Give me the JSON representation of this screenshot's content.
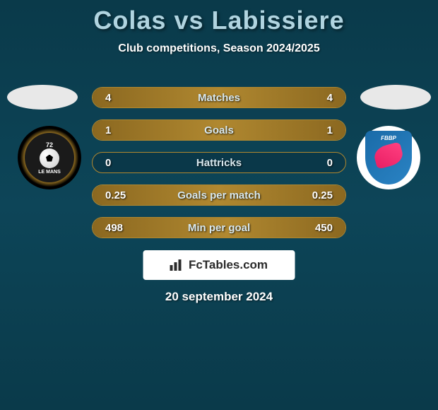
{
  "header": {
    "title": "Colas vs Labissiere",
    "subtitle": "Club competitions, Season 2024/2025"
  },
  "stats": [
    {
      "label": "Matches",
      "left_value": "4",
      "right_value": "4",
      "left_fill_pct": 50,
      "right_fill_pct": 50
    },
    {
      "label": "Goals",
      "left_value": "1",
      "right_value": "1",
      "left_fill_pct": 50,
      "right_fill_pct": 50
    },
    {
      "label": "Hattricks",
      "left_value": "0",
      "right_value": "0",
      "left_fill_pct": 0,
      "right_fill_pct": 0
    },
    {
      "label": "Goals per match",
      "left_value": "0.25",
      "right_value": "0.25",
      "left_fill_pct": 50,
      "right_fill_pct": 50
    },
    {
      "label": "Min per goal",
      "left_value": "498",
      "right_value": "450",
      "left_fill_pct": 53,
      "right_fill_pct": 47
    }
  ],
  "badges": {
    "left": {
      "text": "LE MANS",
      "number": "72"
    },
    "right": {
      "text": "FBBP"
    }
  },
  "watermark": {
    "text": "FcTables.com"
  },
  "date": "20 september 2024",
  "colors": {
    "background_top": "#0a3a4a",
    "background_mid": "#0d4558",
    "bar_border": "#b08830",
    "bar_fill": "#8b6820",
    "title_color": "#b0d4e0",
    "text_color": "#ffffff"
  },
  "typography": {
    "title_fontsize": 36,
    "subtitle_fontsize": 16,
    "stat_fontsize": 15,
    "date_fontsize": 17
  }
}
